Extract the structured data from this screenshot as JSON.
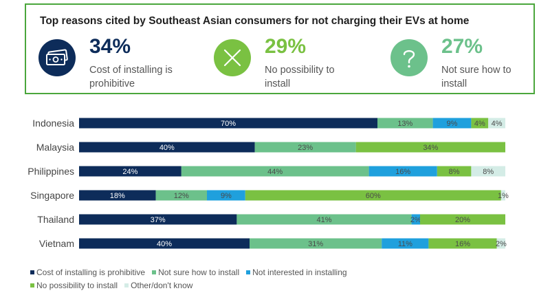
{
  "summary": {
    "title": "Top reasons cited by Southeast Asian consumers for not charging their EVs at home",
    "stats": [
      {
        "icon": "money-icon",
        "value": "34%",
        "desc": "Cost of installing is prohibitive",
        "color": "#0d2c5a"
      },
      {
        "icon": "cross-icon",
        "value": "29%",
        "desc": "No possibility to install",
        "color": "#7ac142"
      },
      {
        "icon": "question-icon",
        "value": "27%",
        "desc": "Not sure how to install",
        "color": "#6cc18b"
      }
    ]
  },
  "chart_data": {
    "type": "bar",
    "orientation": "horizontal",
    "stacked": true,
    "categories": [
      "Indonesia",
      "Malaysia",
      "Philippines",
      "Singapore",
      "Thailand",
      "Vietnam"
    ],
    "series": [
      {
        "name": "Cost of installing is prohibitive",
        "color": "#0d2c5a",
        "label_color": "#ffffff",
        "values": [
          70,
          40,
          24,
          18,
          37,
          40
        ],
        "labels": [
          "70%",
          "40%",
          "24%",
          "18%",
          "37%",
          "40%"
        ]
      },
      {
        "name": "Not sure how to install",
        "color": "#6cc18b",
        "label_color": "#4a4a4a",
        "values": [
          13,
          23,
          44,
          12,
          41,
          31
        ],
        "labels": [
          "13%",
          "23%",
          "44%",
          "12%",
          "41%",
          "31%"
        ]
      },
      {
        "name": "Not interested in installing",
        "color": "#1fa0dd",
        "label_color": "#4a4a4a",
        "values": [
          9,
          0,
          16,
          9,
          2,
          11
        ],
        "labels": [
          "9%",
          "",
          "16%",
          "9%",
          "2%",
          "11%"
        ]
      },
      {
        "name": "No possibility to install",
        "color": "#7ac142",
        "label_color": "#4a4a4a",
        "values": [
          4,
          34,
          8,
          60,
          20,
          16
        ],
        "labels": [
          "4%",
          "34%",
          "8%",
          "60%",
          "20%",
          "16%"
        ]
      },
      {
        "name": "Other/don't know",
        "color": "#d4ece6",
        "label_color": "#4a4a4a",
        "values": [
          4,
          0,
          8,
          1,
          0,
          2
        ],
        "labels": [
          "4%",
          "",
          "8%",
          "1%",
          "",
          "2%"
        ]
      }
    ],
    "legend_position": "bottom-left"
  }
}
